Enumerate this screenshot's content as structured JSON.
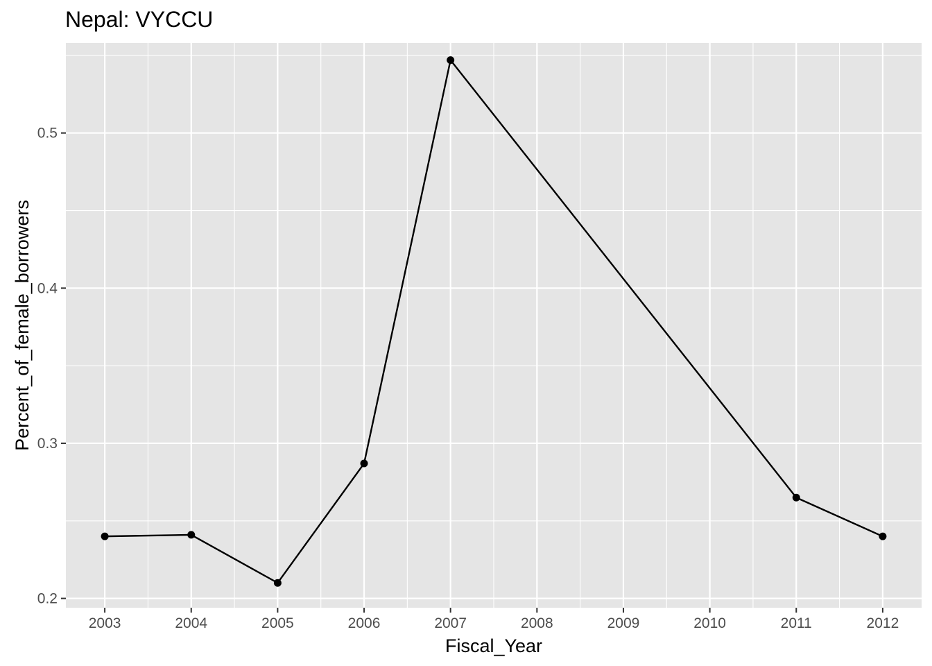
{
  "chart_data": {
    "type": "line",
    "title": "Nepal:  VYCCU",
    "xlabel": "Fiscal_Year",
    "ylabel": "Percent_of_female_borrowers",
    "x_ticks": [
      "2003",
      "2004",
      "2005",
      "2006",
      "2007",
      "2008",
      "2009",
      "2010",
      "2011",
      "2012"
    ],
    "y_ticks": [
      "0.2",
      "0.3",
      "0.4",
      "0.5"
    ],
    "xlim": [
      2002.55,
      2012.45
    ],
    "ylim": [
      0.194,
      0.558
    ],
    "grid": true,
    "series": [
      {
        "x": [
          2003,
          2004,
          2005,
          2006,
          2007,
          2011,
          2012
        ],
        "values": [
          0.24,
          0.241,
          0.21,
          0.287,
          0.547,
          0.265,
          0.24
        ]
      }
    ],
    "colors": {
      "panel": "#e5e5e5",
      "grid": "#ffffff",
      "line": "#000000",
      "tick_text": "#4d4d4d"
    }
  }
}
